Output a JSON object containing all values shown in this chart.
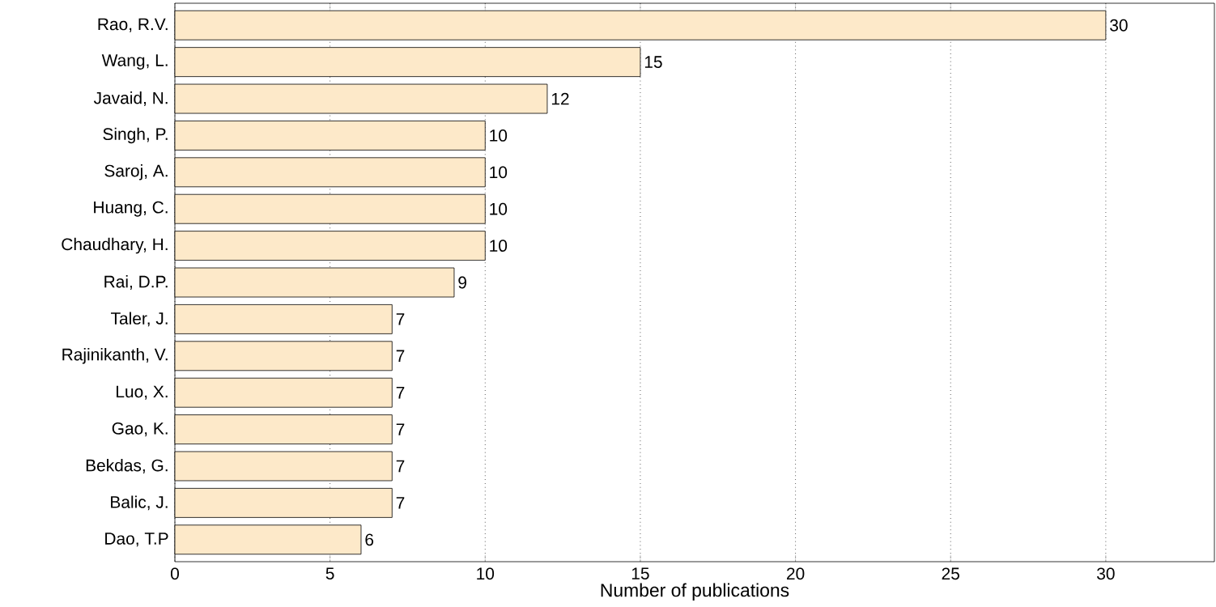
{
  "chart_data": {
    "type": "bar",
    "orientation": "horizontal",
    "categories": [
      "Rao, R.V.",
      "Wang, L.",
      "Javaid, N.",
      "Singh, P.",
      "Saroj, A.",
      "Huang, C.",
      "Chaudhary, H.",
      "Rai, D.P.",
      "Taler, J.",
      "Rajinikanth, V.",
      "Luo, X.",
      "Gao, K.",
      "Bekdas, G.",
      "Balic, J.",
      "Dao, T.P"
    ],
    "values": [
      30,
      15,
      12,
      10,
      10,
      10,
      10,
      9,
      7,
      7,
      7,
      7,
      7,
      7,
      6
    ],
    "color": "#fde9c9",
    "xlabel": "Number of publications",
    "xlim": [
      0,
      33.5
    ],
    "xticks": [
      0,
      5,
      10,
      15,
      20,
      25,
      30
    ],
    "grid": "x",
    "data_labels": true
  }
}
